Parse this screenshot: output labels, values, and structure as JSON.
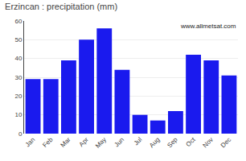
{
  "chart_data": {
    "type": "bar",
    "title": "Erzincan : precipitation (mm)",
    "categories": [
      "Jan",
      "Feb",
      "Mar",
      "Apr",
      "May",
      "Jun",
      "Jul",
      "Aug",
      "Sep",
      "Oct",
      "Nov",
      "Dec"
    ],
    "values": [
      29,
      29,
      39,
      50,
      56,
      34,
      10,
      7,
      12,
      42,
      39,
      31
    ],
    "color": "#1a1aee",
    "ylim": [
      0,
      60
    ],
    "yticks": [
      0,
      10,
      20,
      30,
      40,
      50,
      60
    ],
    "grid": true,
    "annotations": [
      "www.allmetsat.com"
    ]
  }
}
